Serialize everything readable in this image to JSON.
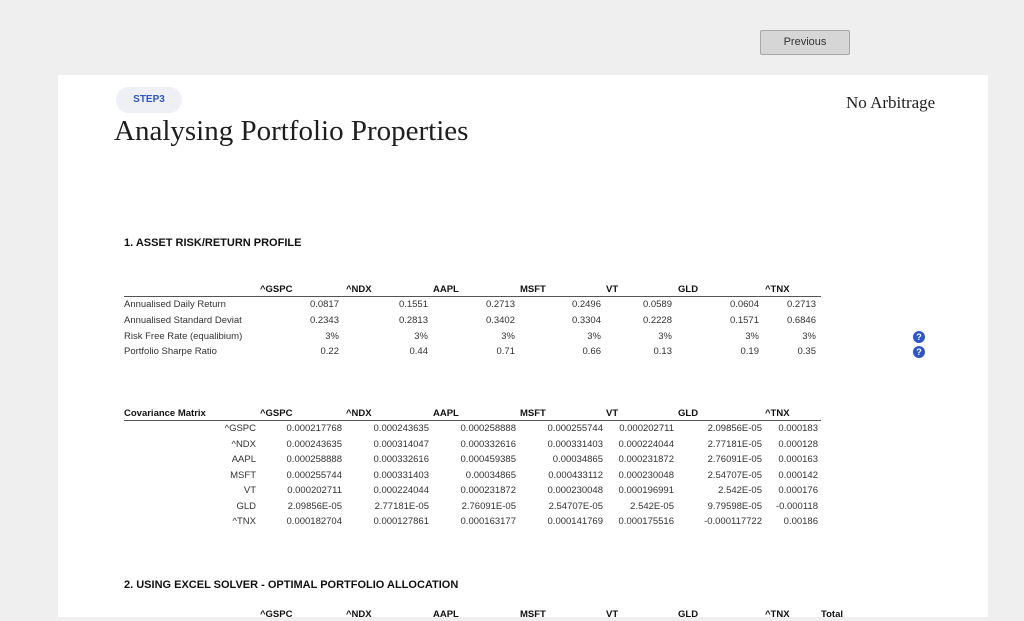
{
  "nav": {
    "previous_label": "Previous"
  },
  "header": {
    "step_label": "STEP3",
    "title": "Analysing Portfolio Properties",
    "brand": "No Arbitrage",
    "help_icon": "question-circle-icon"
  },
  "section1": {
    "heading": "1. ASSET RISK/RETURN PROFILE",
    "columns": [
      "^GSPC",
      "^NDX",
      "AAPL",
      "MSFT",
      "VT",
      "GLD",
      "^TNX"
    ],
    "rows": [
      {
        "label": "Annualised Daily Return",
        "values": [
          "0.0817",
          "0.1551",
          "0.2713",
          "0.2496",
          "0.0589",
          "0.0604",
          "0.2713"
        ],
        "help": false
      },
      {
        "label": "Annualised Standard Deviat",
        "values": [
          "0.2343",
          "0.2813",
          "0.3402",
          "0.3304",
          "0.2228",
          "0.1571",
          "0.6846"
        ],
        "help": false
      },
      {
        "label": "Risk Free Rate (equalibium)",
        "values": [
          "3%",
          "3%",
          "3%",
          "3%",
          "3%",
          "3%",
          "3%"
        ],
        "help": true
      },
      {
        "label": "Portfolio Sharpe Ratio",
        "values": [
          "0.22",
          "0.44",
          "0.71",
          "0.66",
          "0.13",
          "0.19",
          "0.35"
        ],
        "help": true
      }
    ]
  },
  "covariance": {
    "title": "Covariance Matrix",
    "columns": [
      "^GSPC",
      "^NDX",
      "AAPL",
      "MSFT",
      "VT",
      "GLD",
      "^TNX"
    ],
    "rows": [
      {
        "label": "^GSPC",
        "values": [
          "0.000217768",
          "0.000243635",
          "0.000258888",
          "0.000255744",
          "0.000202711",
          "2.09856E-05",
          "0.000183"
        ]
      },
      {
        "label": "^NDX",
        "values": [
          "0.000243635",
          "0.000314047",
          "0.000332616",
          "0.000331403",
          "0.000224044",
          "2.77181E-05",
          "0.000128"
        ]
      },
      {
        "label": "AAPL",
        "values": [
          "0.000258888",
          "0.000332616",
          "0.000459385",
          "0.00034865",
          "0.000231872",
          "2.76091E-05",
          "0.000163"
        ]
      },
      {
        "label": "MSFT",
        "values": [
          "0.000255744",
          "0.000331403",
          "0.00034865",
          "0.000433112",
          "0.000230048",
          "2.54707E-05",
          "0.000142"
        ]
      },
      {
        "label": "VT",
        "values": [
          "0.000202711",
          "0.000224044",
          "0.000231872",
          "0.000230048",
          "0.000196991",
          "2.542E-05",
          "0.000176"
        ]
      },
      {
        "label": "GLD",
        "values": [
          "2.09856E-05",
          "2.77181E-05",
          "2.76091E-05",
          "2.54707E-05",
          "2.542E-05",
          "9.79598E-05",
          "-0.000118"
        ]
      },
      {
        "label": "^TNX",
        "values": [
          "0.000182704",
          "0.000127861",
          "0.000163177",
          "0.000141769",
          "0.000175516",
          "-0.000117722",
          "0.00186"
        ]
      }
    ]
  },
  "section2": {
    "heading": "2. USING EXCEL SOLVER - OPTIMAL PORTFOLIO ALLOCATION",
    "columns": [
      "^GSPC",
      "^NDX",
      "AAPL",
      "MSFT",
      "VT",
      "GLD",
      "^TNX",
      "Total"
    ]
  }
}
